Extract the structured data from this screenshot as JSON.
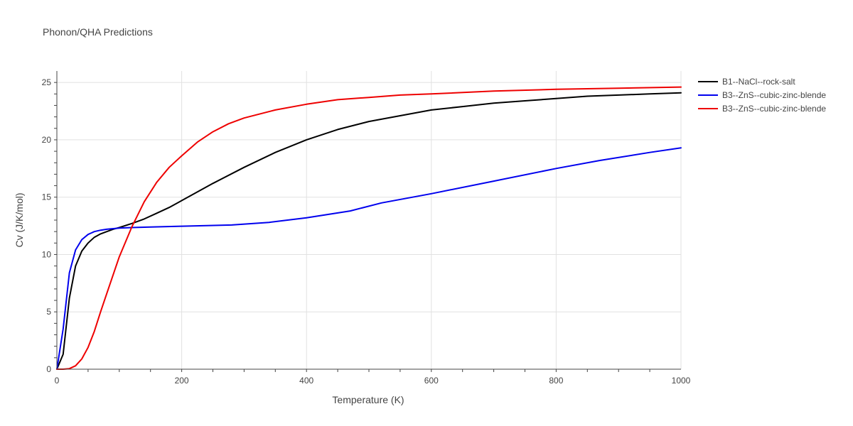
{
  "chart_data": {
    "type": "line",
    "title": "Phonon/QHA Predictions",
    "xlabel": "Temperature (K)",
    "ylabel": "Cv (J/K/mol)",
    "xlim": [
      0,
      1000
    ],
    "ylim": [
      0,
      26
    ],
    "x_ticks": [
      0,
      200,
      400,
      600,
      800,
      1000
    ],
    "y_ticks": [
      0,
      5,
      10,
      15,
      20,
      25
    ],
    "grid": true,
    "legend_position": "top-right, outside plot",
    "series": [
      {
        "name": "B1--NaCl--rock-salt",
        "color": "#000000",
        "x": [
          0,
          10,
          20,
          30,
          40,
          50,
          60,
          70,
          80,
          90,
          100,
          120,
          140,
          160,
          180,
          200,
          250,
          300,
          350,
          400,
          450,
          500,
          550,
          600,
          650,
          700,
          750,
          800,
          850,
          900,
          950,
          1000
        ],
        "y": [
          0,
          1.3,
          6.2,
          9.0,
          10.3,
          11.0,
          11.5,
          11.8,
          12.0,
          12.2,
          12.35,
          12.7,
          13.1,
          13.6,
          14.1,
          14.7,
          16.2,
          17.6,
          18.9,
          20.0,
          20.9,
          21.6,
          22.1,
          22.6,
          22.9,
          23.2,
          23.4,
          23.6,
          23.8,
          23.9,
          24.0,
          24.1
        ]
      },
      {
        "name": "B3--ZnS--cubic-zinc-blende",
        "color": "#0000ee",
        "x": [
          0,
          10,
          20,
          30,
          40,
          50,
          60,
          70,
          80,
          100,
          120,
          150,
          200,
          280,
          340,
          400,
          470,
          520,
          600,
          700,
          800,
          870,
          950,
          1000
        ],
        "y": [
          0,
          3.5,
          8.4,
          10.4,
          11.3,
          11.75,
          12.0,
          12.12,
          12.2,
          12.3,
          12.35,
          12.4,
          12.47,
          12.57,
          12.8,
          13.2,
          13.8,
          14.5,
          15.3,
          16.4,
          17.5,
          18.2,
          18.9,
          19.3
        ]
      },
      {
        "name": "B3--ZnS--cubic-zinc-blende",
        "color": "#ee0000",
        "x": [
          0,
          10,
          20,
          30,
          40,
          50,
          60,
          70,
          80,
          100,
          120,
          140,
          160,
          180,
          200,
          225,
          250,
          275,
          300,
          350,
          400,
          450,
          500,
          550,
          600,
          700,
          800,
          900,
          1000
        ],
        "y": [
          0,
          0.0,
          0.05,
          0.3,
          0.9,
          1.9,
          3.3,
          5.0,
          6.6,
          9.8,
          12.4,
          14.6,
          16.3,
          17.6,
          18.6,
          19.8,
          20.7,
          21.4,
          21.9,
          22.6,
          23.1,
          23.5,
          23.7,
          23.9,
          24.0,
          24.25,
          24.4,
          24.5,
          24.6
        ]
      }
    ]
  }
}
